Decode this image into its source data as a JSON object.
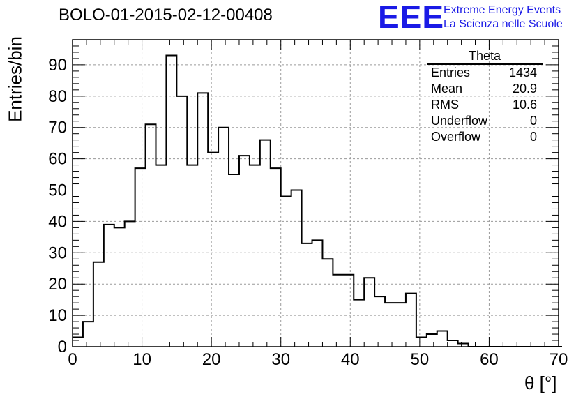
{
  "chart_data": {
    "type": "bar",
    "title": "BOLO-01-2015-02-12-00408",
    "xlabel": "θ [°]",
    "ylabel": "Entries/bin",
    "xlim": [
      0,
      70
    ],
    "ylim": [
      0,
      98
    ],
    "bin_width": 1.5,
    "x_ticks": [
      0,
      10,
      20,
      30,
      40,
      50,
      60,
      70
    ],
    "y_ticks": [
      0,
      10,
      20,
      30,
      40,
      50,
      60,
      70,
      80,
      90
    ],
    "grid": true,
    "values": [
      3,
      8,
      27,
      39,
      38,
      40,
      57,
      71,
      58,
      93,
      80,
      58,
      81,
      62,
      70,
      55,
      61,
      58,
      66,
      57,
      48,
      50,
      33,
      34,
      28,
      23,
      23,
      15,
      22,
      16,
      14,
      14,
      17,
      3,
      4,
      5,
      2,
      1,
      0,
      0,
      0,
      0,
      0,
      0,
      0,
      0,
      0
    ]
  },
  "stats_box": {
    "title": "Theta",
    "rows": [
      {
        "label": "Entries",
        "value": "1434"
      },
      {
        "label": "Mean",
        "value": "20.9"
      },
      {
        "label": "RMS",
        "value": "10.6"
      },
      {
        "label": "Underflow",
        "value": "0"
      },
      {
        "label": "Overflow",
        "value": "0"
      }
    ]
  },
  "logo": {
    "mark": "EEE",
    "line1": "Extreme Energy Events",
    "line2": "La Scienza nelle Scuole",
    "color": "#1a1ae6"
  }
}
